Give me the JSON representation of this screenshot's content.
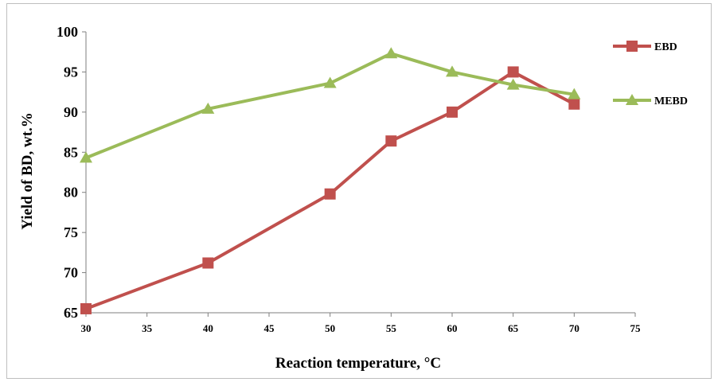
{
  "chart_data": {
    "type": "line",
    "xlabel": "Reaction temperature, °C",
    "ylabel": "Yield of BD, wt.%",
    "xlim": [
      30,
      75
    ],
    "ylim": [
      65,
      100
    ],
    "xticks": [
      "30",
      "35",
      "40",
      "45",
      "50",
      "55",
      "60",
      "65",
      "70",
      "75"
    ],
    "yticks": [
      "65",
      "70",
      "75",
      "80",
      "85",
      "90",
      "95",
      "100"
    ],
    "grid": false,
    "legend_position": "right",
    "series": [
      {
        "name": "EBD",
        "color": "#c0504d",
        "marker": "square",
        "x": [
          30,
          40,
          50,
          55,
          60,
          65,
          70
        ],
        "y": [
          65.5,
          71.2,
          79.8,
          86.4,
          90.0,
          95.0,
          91.0
        ]
      },
      {
        "name": "MEBD",
        "color": "#9bbb59",
        "marker": "triangle",
        "x": [
          30,
          40,
          50,
          55,
          60,
          65,
          70
        ],
        "y": [
          84.3,
          90.4,
          93.6,
          97.3,
          95.0,
          93.4,
          92.2
        ]
      }
    ]
  }
}
